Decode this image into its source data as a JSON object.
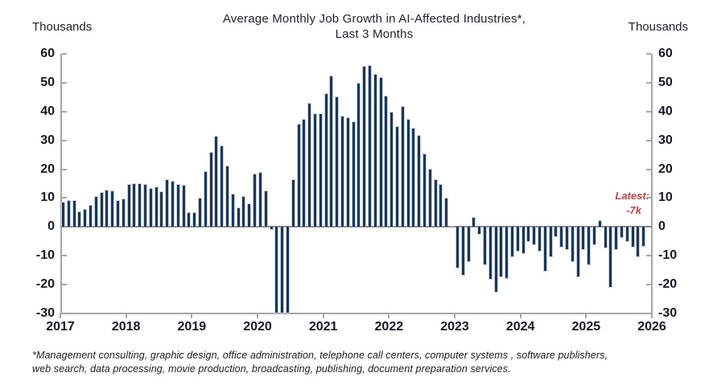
{
  "chart_data": {
    "type": "bar",
    "title": "Average Monthly Job Growth in AI-Affected Industries*,",
    "subtitle": "Last 3 Months",
    "y_axis_label_left": "Thousands",
    "y_axis_label_right": "Thousands",
    "unit": "thousands_of_jobs",
    "ylim": [
      -30,
      60
    ],
    "ytick_step": 10,
    "x_tick_years": [
      "2017",
      "2018",
      "2019",
      "2020",
      "2021",
      "2022",
      "2023",
      "2024",
      "2025",
      "2026"
    ],
    "start_month": "2017-01",
    "end_month": "2025-11",
    "years": [
      "2017",
      "2018",
      "2019",
      "2020",
      "2021",
      "2022",
      "2023",
      "2024",
      "2025"
    ],
    "values_by_year": {
      "2017": [
        8.7,
        9.4,
        9.2,
        5.4,
        6.1,
        7.5,
        10.7,
        12.1,
        12.9,
        12.7,
        9.3,
        9.9
      ],
      "2018": [
        15.0,
        15.2,
        15.2,
        14.8,
        13.6,
        14.1,
        12.4,
        16.6,
        15.9,
        14.8,
        14.6,
        5.0
      ],
      "2019": [
        5.0,
        10.1,
        19.4,
        26.0,
        31.6,
        28.3,
        21.3,
        11.5,
        6.8,
        10.6,
        8.2,
        18.5
      ],
      "2020": [
        19.0,
        12.6,
        -1.0,
        -30.0,
        -30.0,
        -30.0,
        16.4,
        35.8,
        37.5,
        42.9,
        39.3,
        39.3
      ],
      "2021": [
        46.3,
        52.4,
        45.1,
        38.5,
        37.9,
        36.5,
        50.1,
        55.9,
        56.2,
        53.1,
        51.9,
        45.6
      ],
      "2022": [
        39.8,
        34.9,
        41.8,
        37.5,
        34.4,
        31.9,
        25.5,
        20.1,
        16.4,
        15.0,
        10.0,
        0.5
      ],
      "2023": [
        -14.4,
        -17.0,
        -12.3,
        3.4,
        -2.8,
        -13.3,
        -18.4,
        -22.8,
        -17.5,
        -18.1,
        -10.5,
        -8.6
      ],
      "2024": [
        -9.5,
        -5.3,
        -6.3,
        -8.6,
        -15.6,
        -10.5,
        -3.5,
        -7.2,
        -7.9,
        -12.3,
        -17.5,
        -7.9
      ],
      "2025": [
        -13.3,
        -6.3,
        2.4,
        -7.5,
        -21.2,
        -7.9,
        -3.9,
        -5.3,
        -7.2,
        -10.5,
        -7.0
      ]
    },
    "annotation": {
      "label": "Latest:",
      "value": "-7k",
      "color": "#d04045"
    },
    "bar_color": "#17375E",
    "grid": "none",
    "legend": "none",
    "footnote_line1": "*Management consulting, graphic design, office administration, telephone call centers, computer systems , software publishers,",
    "footnote_line2": "web search, data processing, movie production, broadcasting, publishing, document preparation services."
  }
}
